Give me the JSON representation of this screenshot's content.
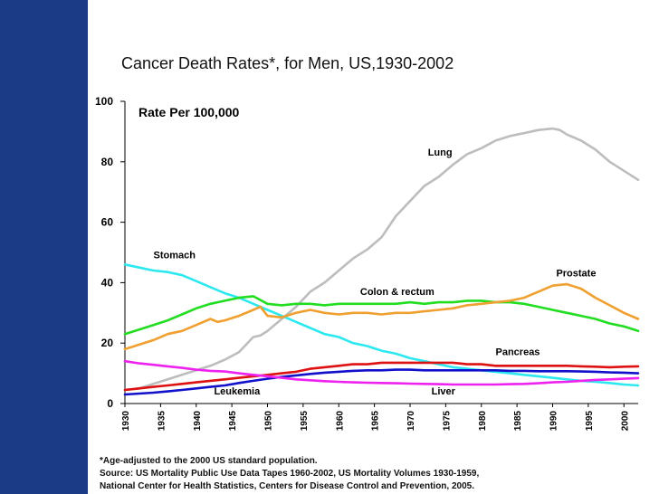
{
  "slide": {
    "sidebar_color": "#1a3c86",
    "title": "Cancer Death Rates*, for Men, US,1930-2002",
    "footnotes": [
      "*Age-adjusted to the 2000 US standard population.",
      "Source:  US Mortality Public Use Data Tapes 1960-2002, US Mortality Volumes 1930-1959,",
      "National Center for Health Statistics, Centers for Disease Control and Prevention, 2005."
    ]
  },
  "chart_data": {
    "type": "line",
    "title": "Cancer Death Rates*, for Men, US,1930-2002",
    "ylabel": "Rate Per 100,000",
    "xlabel": "",
    "ylim": [
      0,
      100
    ],
    "xlim": [
      1930,
      2002
    ],
    "yticks": [
      0,
      20,
      40,
      60,
      80,
      100
    ],
    "xticks": [
      1930,
      1935,
      1940,
      1945,
      1950,
      1955,
      1960,
      1965,
      1970,
      1975,
      1980,
      1985,
      1990,
      1995,
      2000
    ],
    "grid": false,
    "legend": "inline labels",
    "series": [
      {
        "name": "Lung",
        "color": "#bdbdbd",
        "points": [
          [
            1930,
            4.5
          ],
          [
            1932,
            5
          ],
          [
            1934,
            6.5
          ],
          [
            1936,
            8
          ],
          [
            1938,
            9.5
          ],
          [
            1940,
            11
          ],
          [
            1942,
            12.5
          ],
          [
            1944,
            14.5
          ],
          [
            1946,
            17
          ],
          [
            1948,
            22
          ],
          [
            1949,
            22.5
          ],
          [
            1950,
            24
          ],
          [
            1952,
            28
          ],
          [
            1954,
            32
          ],
          [
            1956,
            37
          ],
          [
            1958,
            40
          ],
          [
            1960,
            44
          ],
          [
            1962,
            48
          ],
          [
            1964,
            51
          ],
          [
            1966,
            55
          ],
          [
            1968,
            62
          ],
          [
            1970,
            67
          ],
          [
            1972,
            72
          ],
          [
            1974,
            75
          ],
          [
            1976,
            79
          ],
          [
            1978,
            82.5
          ],
          [
            1980,
            84.5
          ],
          [
            1982,
            87
          ],
          [
            1984,
            88.5
          ],
          [
            1986,
            89.5
          ],
          [
            1988,
            90.5
          ],
          [
            1990,
            91
          ],
          [
            1991,
            90.5
          ],
          [
            1992,
            89
          ],
          [
            1994,
            87
          ],
          [
            1996,
            84
          ],
          [
            1998,
            80
          ],
          [
            2000,
            77
          ],
          [
            2002,
            74
          ]
        ]
      },
      {
        "name": "Stomach",
        "color": "#2ee8f0",
        "points": [
          [
            1930,
            46
          ],
          [
            1932,
            45
          ],
          [
            1934,
            44
          ],
          [
            1936,
            43.5
          ],
          [
            1938,
            42.5
          ],
          [
            1940,
            40.5
          ],
          [
            1942,
            38.5
          ],
          [
            1944,
            36.5
          ],
          [
            1946,
            35
          ],
          [
            1948,
            33
          ],
          [
            1950,
            31
          ],
          [
            1952,
            29
          ],
          [
            1954,
            27
          ],
          [
            1956,
            25
          ],
          [
            1958,
            23
          ],
          [
            1960,
            22
          ],
          [
            1962,
            20
          ],
          [
            1964,
            19
          ],
          [
            1966,
            17.5
          ],
          [
            1968,
            16.5
          ],
          [
            1970,
            15
          ],
          [
            1972,
            14
          ],
          [
            1974,
            13
          ],
          [
            1976,
            12
          ],
          [
            1978,
            11.5
          ],
          [
            1980,
            11
          ],
          [
            1982,
            10.5
          ],
          [
            1984,
            10
          ],
          [
            1986,
            9.5
          ],
          [
            1988,
            9
          ],
          [
            1990,
            8.5
          ],
          [
            1992,
            8
          ],
          [
            1994,
            7.5
          ],
          [
            1996,
            7.2
          ],
          [
            1998,
            6.8
          ],
          [
            2000,
            6.3
          ],
          [
            2002,
            6
          ]
        ]
      },
      {
        "name": "Colon & rectum",
        "color": "#22dd22",
        "points": [
          [
            1930,
            23
          ],
          [
            1932,
            24.5
          ],
          [
            1934,
            26
          ],
          [
            1936,
            27.5
          ],
          [
            1938,
            29.5
          ],
          [
            1940,
            31.5
          ],
          [
            1942,
            33
          ],
          [
            1944,
            34
          ],
          [
            1946,
            35
          ],
          [
            1948,
            35.5
          ],
          [
            1950,
            33
          ],
          [
            1952,
            32.5
          ],
          [
            1954,
            33
          ],
          [
            1956,
            33
          ],
          [
            1958,
            32.5
          ],
          [
            1960,
            33
          ],
          [
            1962,
            33
          ],
          [
            1964,
            33
          ],
          [
            1966,
            33
          ],
          [
            1968,
            33
          ],
          [
            1970,
            33.5
          ],
          [
            1972,
            33
          ],
          [
            1974,
            33.5
          ],
          [
            1976,
            33.5
          ],
          [
            1978,
            34
          ],
          [
            1980,
            34
          ],
          [
            1982,
            33.5
          ],
          [
            1984,
            33.5
          ],
          [
            1986,
            33
          ],
          [
            1988,
            32
          ],
          [
            1990,
            31
          ],
          [
            1992,
            30
          ],
          [
            1994,
            29
          ],
          [
            1996,
            28
          ],
          [
            1998,
            26.5
          ],
          [
            2000,
            25.5
          ],
          [
            2002,
            24
          ]
        ]
      },
      {
        "name": "Prostate",
        "color": "#f0a030",
        "points": [
          [
            1930,
            18
          ],
          [
            1932,
            19.5
          ],
          [
            1934,
            21
          ],
          [
            1936,
            23
          ],
          [
            1938,
            24
          ],
          [
            1940,
            26
          ],
          [
            1942,
            28
          ],
          [
            1943,
            27
          ],
          [
            1944,
            27.5
          ],
          [
            1946,
            29
          ],
          [
            1948,
            31
          ],
          [
            1949,
            32
          ],
          [
            1950,
            29
          ],
          [
            1952,
            28.5
          ],
          [
            1954,
            30
          ],
          [
            1956,
            31
          ],
          [
            1958,
            30
          ],
          [
            1960,
            29.5
          ],
          [
            1962,
            30
          ],
          [
            1964,
            30
          ],
          [
            1966,
            29.5
          ],
          [
            1968,
            30
          ],
          [
            1970,
            30
          ],
          [
            1972,
            30.5
          ],
          [
            1974,
            31
          ],
          [
            1976,
            31.5
          ],
          [
            1978,
            32.5
          ],
          [
            1980,
            33
          ],
          [
            1982,
            33.5
          ],
          [
            1984,
            34
          ],
          [
            1986,
            35
          ],
          [
            1988,
            37
          ],
          [
            1990,
            39
          ],
          [
            1992,
            39.5
          ],
          [
            1994,
            38
          ],
          [
            1996,
            35
          ],
          [
            1998,
            32.5
          ],
          [
            2000,
            30
          ],
          [
            2002,
            28
          ]
        ]
      },
      {
        "name": "Pancreas",
        "color": "#dd1111",
        "points": [
          [
            1930,
            4.5
          ],
          [
            1932,
            5
          ],
          [
            1934,
            5.5
          ],
          [
            1936,
            6
          ],
          [
            1938,
            6.5
          ],
          [
            1940,
            7
          ],
          [
            1942,
            7.5
          ],
          [
            1944,
            8
          ],
          [
            1946,
            8.5
          ],
          [
            1948,
            9
          ],
          [
            1950,
            9.5
          ],
          [
            1952,
            10
          ],
          [
            1954,
            10.5
          ],
          [
            1956,
            11.5
          ],
          [
            1958,
            12
          ],
          [
            1960,
            12.5
          ],
          [
            1962,
            13
          ],
          [
            1964,
            13
          ],
          [
            1966,
            13.5
          ],
          [
            1968,
            13.5
          ],
          [
            1970,
            13.5
          ],
          [
            1972,
            13.5
          ],
          [
            1974,
            13.5
          ],
          [
            1976,
            13.5
          ],
          [
            1978,
            13
          ],
          [
            1980,
            13
          ],
          [
            1982,
            12.5
          ],
          [
            1984,
            12.5
          ],
          [
            1986,
            12.5
          ],
          [
            1988,
            12.5
          ],
          [
            1990,
            12.5
          ],
          [
            1992,
            12.5
          ],
          [
            1994,
            12.3
          ],
          [
            1996,
            12.2
          ],
          [
            1998,
            12
          ],
          [
            2000,
            12.2
          ],
          [
            2002,
            12.3
          ]
        ]
      },
      {
        "name": "Leukemia",
        "color": "#1111cc",
        "points": [
          [
            1930,
            3
          ],
          [
            1932,
            3.3
          ],
          [
            1934,
            3.6
          ],
          [
            1936,
            4
          ],
          [
            1938,
            4.5
          ],
          [
            1940,
            5
          ],
          [
            1942,
            5.5
          ],
          [
            1944,
            6
          ],
          [
            1946,
            6.8
          ],
          [
            1948,
            7.5
          ],
          [
            1950,
            8.2
          ],
          [
            1952,
            8.8
          ],
          [
            1954,
            9.3
          ],
          [
            1956,
            9.8
          ],
          [
            1958,
            10.2
          ],
          [
            1960,
            10.5
          ],
          [
            1962,
            10.8
          ],
          [
            1964,
            11
          ],
          [
            1966,
            11
          ],
          [
            1968,
            11.2
          ],
          [
            1970,
            11.2
          ],
          [
            1972,
            11
          ],
          [
            1974,
            11
          ],
          [
            1976,
            11
          ],
          [
            1978,
            11
          ],
          [
            1980,
            11
          ],
          [
            1982,
            11
          ],
          [
            1984,
            10.8
          ],
          [
            1986,
            10.8
          ],
          [
            1988,
            10.7
          ],
          [
            1990,
            10.7
          ],
          [
            1992,
            10.7
          ],
          [
            1994,
            10.6
          ],
          [
            1996,
            10.5
          ],
          [
            1998,
            10.3
          ],
          [
            2000,
            10.2
          ],
          [
            2002,
            10
          ]
        ]
      },
      {
        "name": "Liver",
        "color": "#ee22ee",
        "points": [
          [
            1930,
            14
          ],
          [
            1932,
            13.3
          ],
          [
            1934,
            12.8
          ],
          [
            1936,
            12.3
          ],
          [
            1938,
            11.8
          ],
          [
            1940,
            11.2
          ],
          [
            1942,
            10.8
          ],
          [
            1944,
            10.6
          ],
          [
            1946,
            10
          ],
          [
            1948,
            9.5
          ],
          [
            1950,
            9
          ],
          [
            1952,
            8.5
          ],
          [
            1954,
            8
          ],
          [
            1956,
            7.7
          ],
          [
            1958,
            7.4
          ],
          [
            1960,
            7.2
          ],
          [
            1962,
            7
          ],
          [
            1964,
            6.9
          ],
          [
            1966,
            6.8
          ],
          [
            1968,
            6.7
          ],
          [
            1970,
            6.6
          ],
          [
            1972,
            6.5
          ],
          [
            1974,
            6.4
          ],
          [
            1976,
            6.3
          ],
          [
            1978,
            6.3
          ],
          [
            1980,
            6.3
          ],
          [
            1982,
            6.3
          ],
          [
            1984,
            6.4
          ],
          [
            1986,
            6.5
          ],
          [
            1988,
            6.7
          ],
          [
            1990,
            7
          ],
          [
            1992,
            7.2
          ],
          [
            1994,
            7.5
          ],
          [
            1996,
            7.8
          ],
          [
            1998,
            8
          ],
          [
            2000,
            8.2
          ],
          [
            2002,
            8.4
          ]
        ]
      }
    ],
    "annotations": [
      {
        "text": "Lung",
        "x": 1972.5,
        "y": 82,
        "series": "Lung"
      },
      {
        "text": "Stomach",
        "x": 1934,
        "y": 48,
        "series": "Stomach"
      },
      {
        "text": "Colon & rectum",
        "x": 1963,
        "y": 36,
        "series": "Colon & rectum"
      },
      {
        "text": "Prostate",
        "x": 1990.5,
        "y": 42,
        "series": "Prostate"
      },
      {
        "text": "Pancreas",
        "x": 1982,
        "y": 16,
        "series": "Pancreas"
      },
      {
        "text": "Leukemia",
        "x": 1942.5,
        "y": 3,
        "series": "Leukemia"
      },
      {
        "text": "Liver",
        "x": 1973,
        "y": 3,
        "series": "Liver"
      }
    ]
  }
}
